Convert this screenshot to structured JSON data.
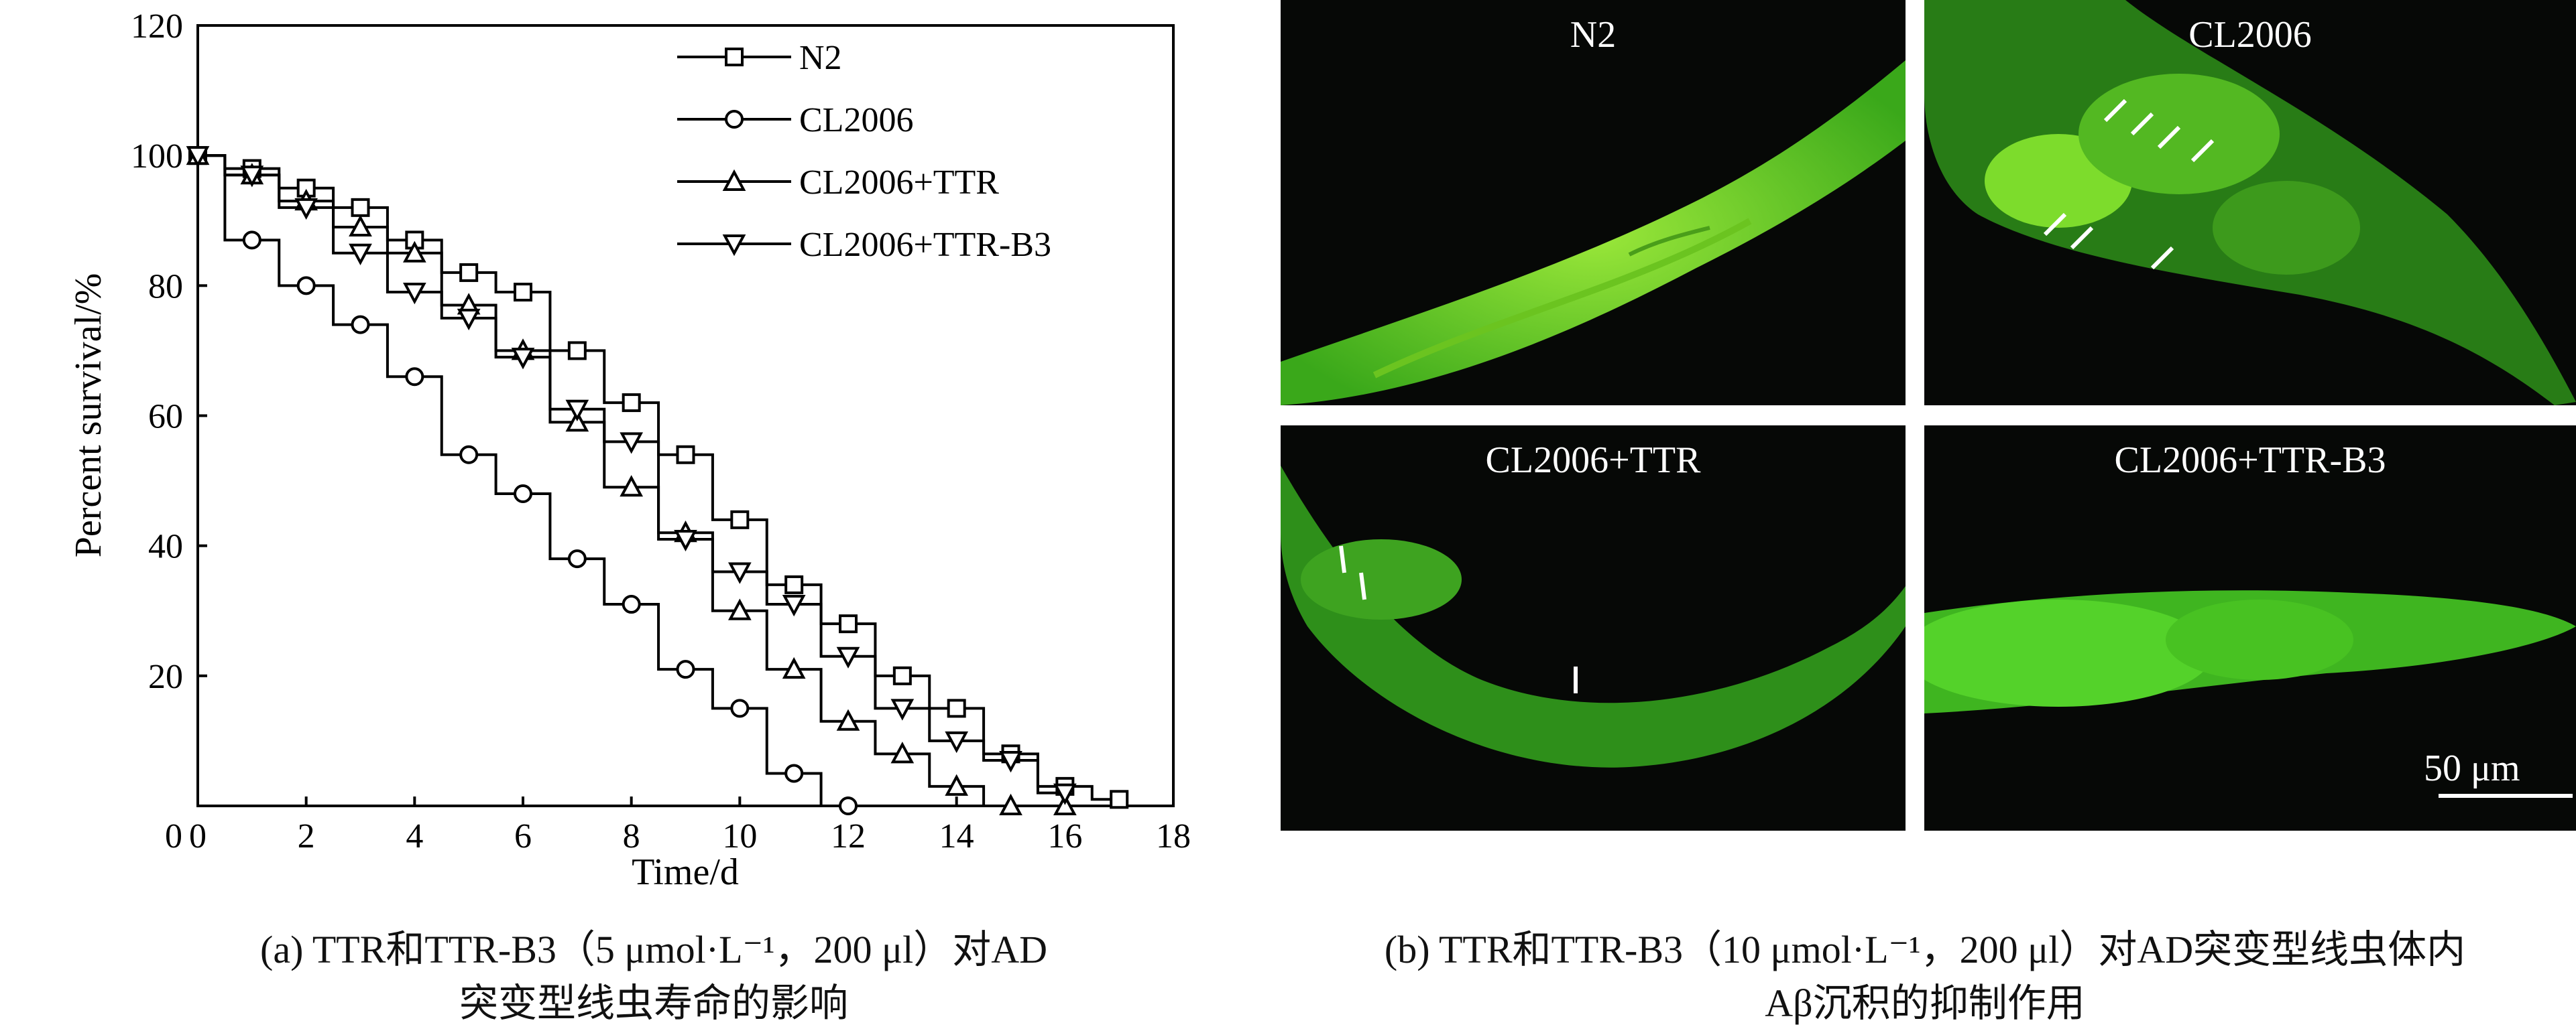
{
  "chart_data": {
    "type": "line",
    "style": "step",
    "xlabel": "Time/d",
    "ylabel": "Percent survival/%",
    "xlim": [
      0,
      18
    ],
    "ylim": [
      0,
      120
    ],
    "xticks": [
      0,
      2,
      4,
      6,
      8,
      10,
      12,
      14,
      16,
      18
    ],
    "yticks": [
      0,
      20,
      40,
      60,
      80,
      100,
      120
    ],
    "x": [
      0,
      1,
      2,
      3,
      4,
      5,
      6,
      7,
      8,
      9,
      10,
      11,
      12,
      13,
      14,
      15,
      16,
      17
    ],
    "legend_placement": "top-right",
    "series": [
      {
        "name": "N2",
        "marker": "square",
        "values": [
          100,
          98,
          95,
          92,
          87,
          82,
          79,
          70,
          62,
          54,
          44,
          34,
          28,
          20,
          15,
          8,
          3,
          1
        ]
      },
      {
        "name": "CL2006",
        "marker": "circle",
        "values": [
          100,
          87,
          80,
          74,
          66,
          54,
          48,
          38,
          31,
          21,
          15,
          5,
          0,
          null,
          null,
          null,
          null,
          null
        ]
      },
      {
        "name": "CL2006+TTR",
        "marker": "triangle-up",
        "values": [
          100,
          97,
          93,
          89,
          85,
          77,
          70,
          59,
          49,
          42,
          30,
          21,
          13,
          8,
          3,
          0,
          0,
          null
        ]
      },
      {
        "name": "CL2006+TTR-B3",
        "marker": "triangle-down",
        "values": [
          100,
          97,
          92,
          85,
          79,
          75,
          69,
          61,
          56,
          41,
          36,
          31,
          23,
          15,
          10,
          7,
          2,
          null
        ]
      }
    ]
  },
  "captions": {
    "a_line1": "(a) TTR和TTR-B3（5 μmol·L⁻¹，200 μl）对AD",
    "a_line2": "突变型线虫寿命的影响",
    "b_line1": "(b) TTR和TTR-B3（10 μmol·L⁻¹，200 μl）对AD突变型线虫体内",
    "b_line2": "Aβ沉积的抑制作用"
  },
  "panels": [
    {
      "label": "N2"
    },
    {
      "label": "CL2006"
    },
    {
      "label": "CL2006+TTR"
    },
    {
      "label": "CL2006+TTR-B3"
    }
  ],
  "scale_bar": {
    "label": "50 μm"
  }
}
